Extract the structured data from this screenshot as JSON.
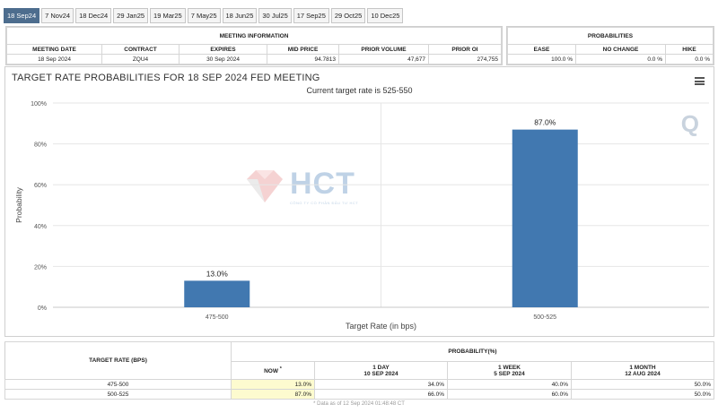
{
  "tabs": [
    "18 Sep24",
    "7 Nov24",
    "18 Dec24",
    "29 Jan25",
    "19 Mar25",
    "7 May25",
    "18 Jun25",
    "30 Jul25",
    "17 Sep25",
    "29 Oct25",
    "10 Dec25"
  ],
  "meeting_info": {
    "section_title": "MEETING INFORMATION",
    "headers": [
      "MEETING DATE",
      "CONTRACT",
      "EXPIRES",
      "MID PRICE",
      "PRIOR VOLUME",
      "PRIOR OI"
    ],
    "values": [
      "18 Sep 2024",
      "ZQU4",
      "30 Sep 2024",
      "94.7813",
      "47,677",
      "274,755"
    ]
  },
  "probabilities": {
    "section_title": "PROBABILITIES",
    "headers": [
      "EASE",
      "NO CHANGE",
      "HIKE"
    ],
    "values": [
      "100.0 %",
      "0.0 %",
      "0.0 %"
    ]
  },
  "watermark": {
    "brand": "HCT",
    "tagline": "CÔNG TY CỔ PHẦN ĐẦU TƯ HCT"
  },
  "chart_data": {
    "type": "bar",
    "title": "TARGET RATE PROBABILITIES FOR 18 SEP 2024 FED MEETING",
    "subtitle": "Current target rate is 525-550",
    "xlabel": "Target Rate (in bps)",
    "ylabel": "Probability",
    "categories": [
      "475-500",
      "500-525"
    ],
    "values": [
      13.0,
      87.0
    ],
    "data_labels": [
      "13.0%",
      "87.0%"
    ],
    "ylim": [
      0,
      100
    ],
    "yticks": [
      0,
      20,
      40,
      60,
      80,
      100
    ],
    "ytick_labels": [
      "0%",
      "20%",
      "40%",
      "60%",
      "80%",
      "100%"
    ],
    "grid": true,
    "bar_color": "#4178b0"
  },
  "bottom_table": {
    "target_header": "TARGET RATE (BPS)",
    "prob_header": "PROBABILITY(%)",
    "columns": [
      {
        "label": "NOW",
        "mark": "*",
        "sub": ""
      },
      {
        "label": "1 DAY",
        "sub": "10 SEP 2024"
      },
      {
        "label": "1 WEEK",
        "sub": "5 SEP 2024"
      },
      {
        "label": "1 MONTH",
        "sub": "12 AUG 2024"
      }
    ],
    "rows": [
      {
        "rate": "475-500",
        "vals": [
          "13.0%",
          "34.0%",
          "40.0%",
          "50.0%"
        ]
      },
      {
        "rate": "500-525",
        "vals": [
          "87.0%",
          "66.0%",
          "60.0%",
          "50.0%"
        ]
      }
    ],
    "footnote": "* Data as of 12 Sep 2024 01:48:48 CT"
  }
}
